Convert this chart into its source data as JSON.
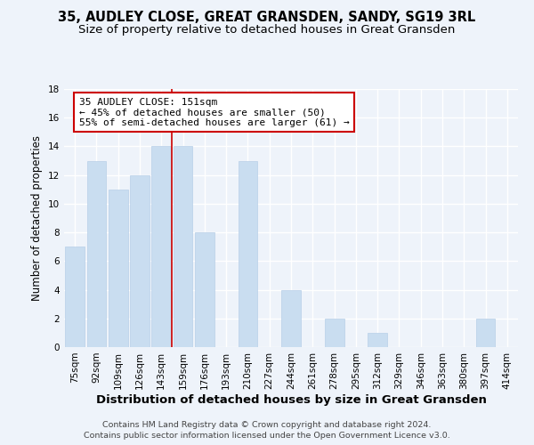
{
  "title": "35, AUDLEY CLOSE, GREAT GRANSDEN, SANDY, SG19 3RL",
  "subtitle": "Size of property relative to detached houses in Great Gransden",
  "xlabel": "Distribution of detached houses by size in Great Gransden",
  "ylabel": "Number of detached properties",
  "bar_labels": [
    "75sqm",
    "92sqm",
    "109sqm",
    "126sqm",
    "143sqm",
    "159sqm",
    "176sqm",
    "193sqm",
    "210sqm",
    "227sqm",
    "244sqm",
    "261sqm",
    "278sqm",
    "295sqm",
    "312sqm",
    "329sqm",
    "346sqm",
    "363sqm",
    "380sqm",
    "397sqm",
    "414sqm"
  ],
  "bar_values": [
    7,
    13,
    11,
    12,
    14,
    14,
    8,
    0,
    13,
    0,
    4,
    0,
    2,
    0,
    1,
    0,
    0,
    0,
    0,
    2,
    0
  ],
  "bar_color": "#c9ddf0",
  "bar_edge_color": "#b8cfe8",
  "annotation_text_line1": "35 AUDLEY CLOSE: 151sqm",
  "annotation_text_line2": "← 45% of detached houses are smaller (50)",
  "annotation_text_line3": "55% of semi-detached houses are larger (61) →",
  "annotation_box_facecolor": "#ffffff",
  "annotation_box_edgecolor": "#cc0000",
  "vline_color": "#cc0000",
  "ylim": [
    0,
    18
  ],
  "yticks": [
    0,
    2,
    4,
    6,
    8,
    10,
    12,
    14,
    16,
    18
  ],
  "footer_line1": "Contains HM Land Registry data © Crown copyright and database right 2024.",
  "footer_line2": "Contains public sector information licensed under the Open Government Licence v3.0.",
  "bg_color": "#eef3fa",
  "grid_color": "#ffffff",
  "title_fontsize": 10.5,
  "subtitle_fontsize": 9.5,
  "xlabel_fontsize": 9.5,
  "ylabel_fontsize": 8.5,
  "tick_fontsize": 7.5,
  "annotation_fontsize": 8,
  "footer_fontsize": 6.8
}
